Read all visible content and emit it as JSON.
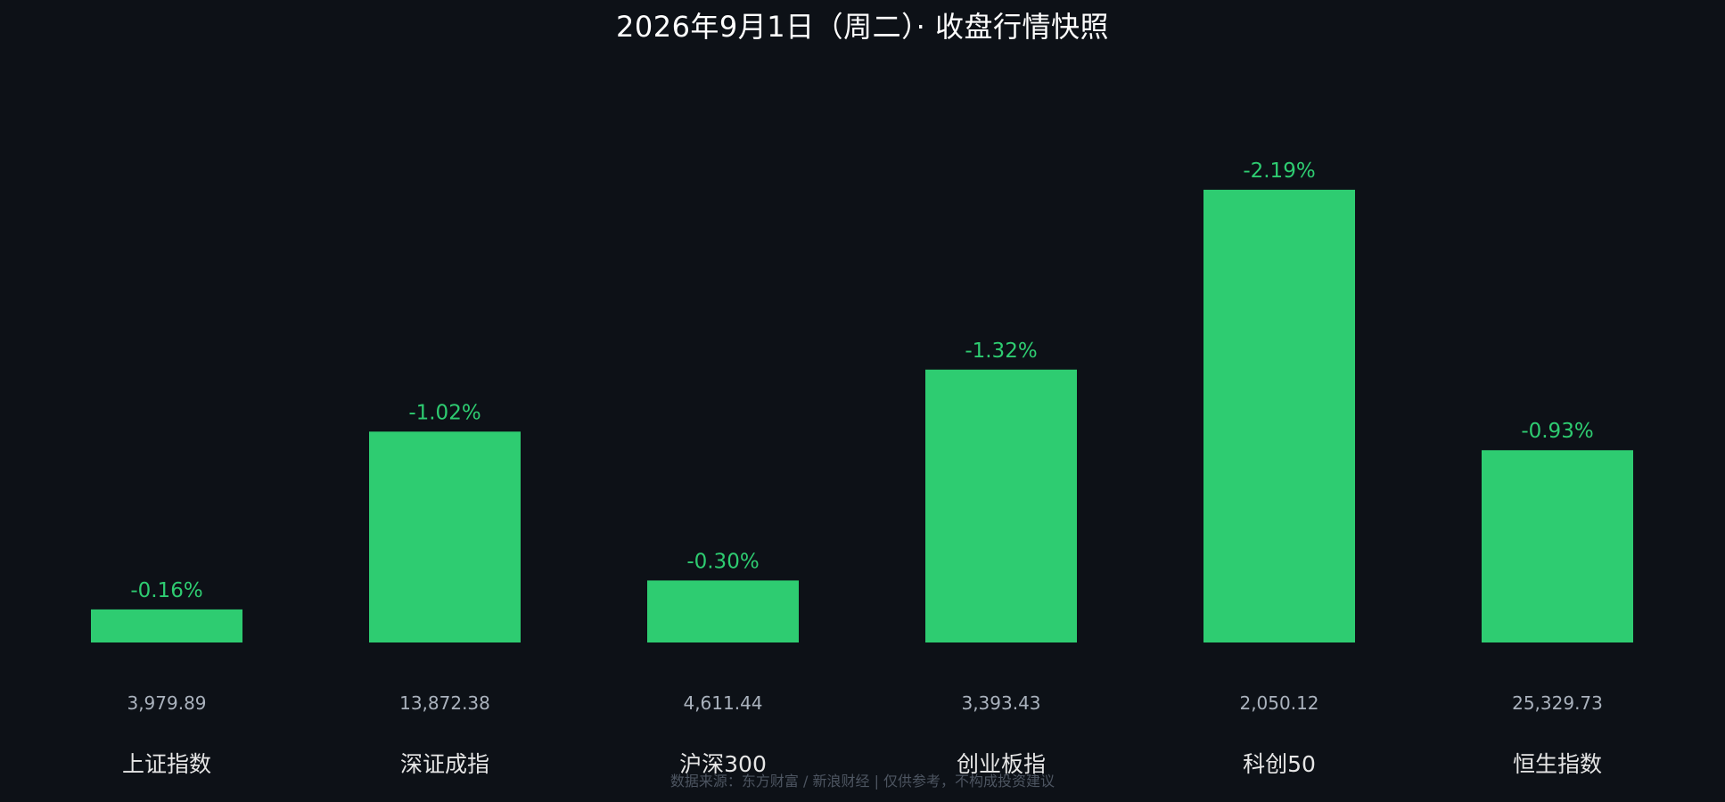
{
  "title": "2026年9月1日（周二）·  收盘行情快照",
  "footer": "数据来源：东方财富 / 新浪财经 | 仅供参考，不构成投资建议",
  "colors": {
    "background": "#0d1117",
    "bar": "#2ecc71",
    "change_label": "#2ecc71",
    "index_value": "#aab2bd",
    "category_label": "#e6e6e6",
    "title": "#ffffff",
    "footer": "#4d5561"
  },
  "chart_data": {
    "type": "bar",
    "title": "2026年9月1日（周二）·  收盘行情快照",
    "xlabel": "",
    "ylabel": "",
    "grid": false,
    "legend": "none",
    "categories": [
      "上证指数",
      "深证成指",
      "沪深300",
      "创业板指",
      "科创50",
      "恒生指数"
    ],
    "values": [
      -0.16,
      -1.02,
      -0.3,
      -1.32,
      -2.19,
      -0.93
    ],
    "value_labels": [
      "-0.16%",
      "-1.02%",
      "-0.30%",
      "-1.32%",
      "-2.19%",
      "-0.93%"
    ],
    "index_values": [
      "3,979.89",
      "13,872.38",
      "4,611.44",
      "3,393.43",
      "2,050.12",
      "25,329.73"
    ],
    "unit": "%"
  }
}
